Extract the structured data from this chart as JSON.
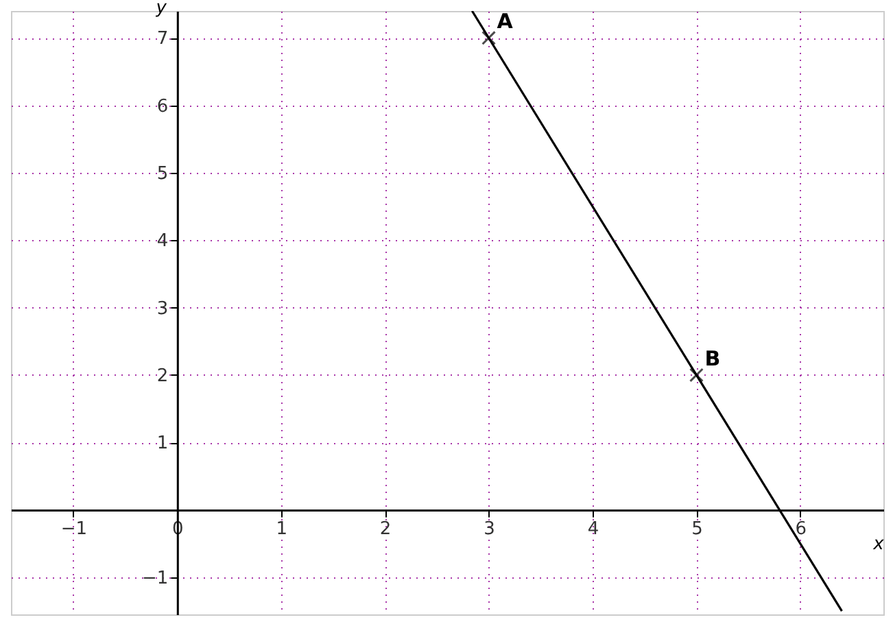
{
  "chart_data": {
    "type": "line",
    "xlabel": "x",
    "ylabel": "y",
    "xlim": [
      -1.6,
      6.8
    ],
    "ylim": [
      -1.55,
      7.4
    ],
    "xticks": [
      -1,
      0,
      1,
      2,
      3,
      4,
      5,
      6
    ],
    "yticks": [
      -1,
      {
        "value": 0,
        "label": null
      },
      1,
      2,
      3,
      4,
      5,
      6,
      7
    ],
    "grid": true,
    "series": [
      {
        "color": "#000000",
        "line_style": "solid",
        "marker": "none",
        "x": [
          2.84,
          6.4
        ],
        "values": [
          7.4,
          -1.5
        ]
      },
      {
        "type": "scatter",
        "color": "#000000",
        "marker": "cross",
        "x": [
          3,
          5
        ],
        "values": [
          7,
          2
        ]
      }
    ],
    "annotations": [
      {
        "text": "A",
        "x": 3,
        "y": 7
      },
      {
        "text": "B",
        "x": 5,
        "y": 2
      }
    ]
  }
}
